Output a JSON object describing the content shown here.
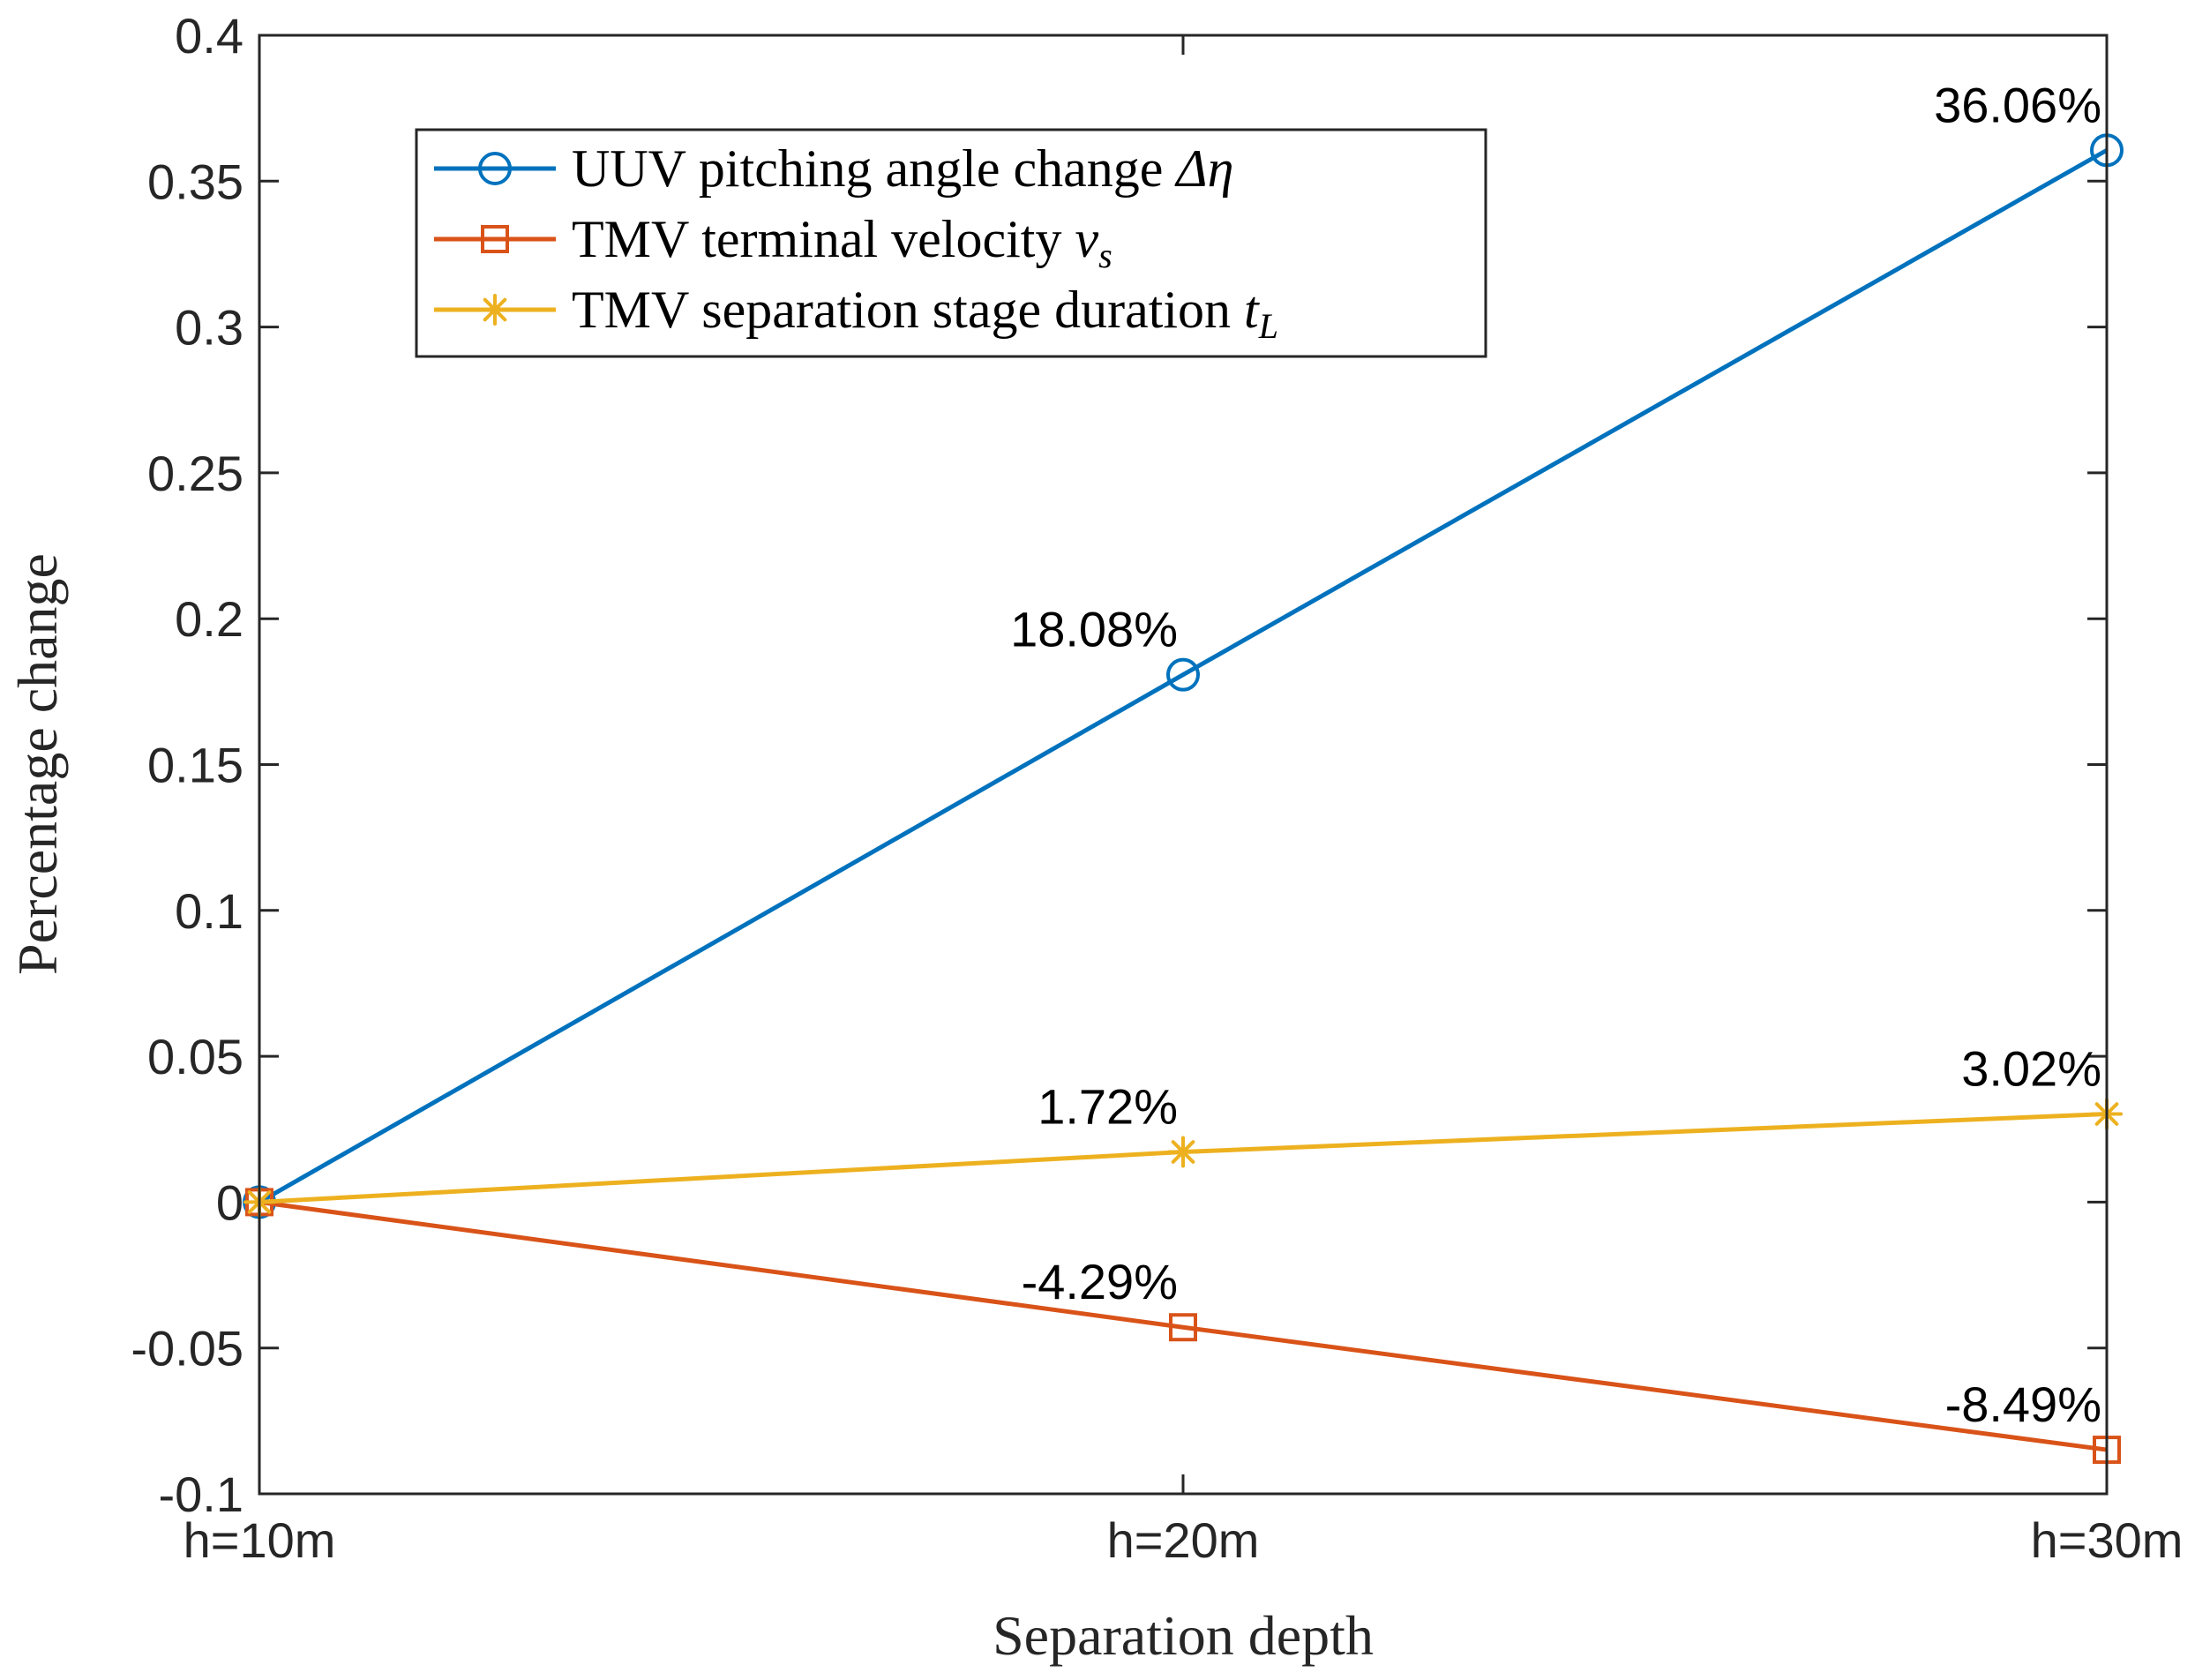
{
  "chart_data": {
    "type": "line",
    "title": "",
    "xlabel": "Separation depth",
    "ylabel": "Percentage change",
    "categories": [
      "h=10m",
      "h=20m",
      "h=30m"
    ],
    "ylim": [
      -0.1,
      0.4
    ],
    "yticks": [
      -0.1,
      -0.05,
      0,
      0.05,
      0.1,
      0.15,
      0.2,
      0.25,
      0.3,
      0.35,
      0.4
    ],
    "ytick_labels": [
      "-0.1",
      "-0.05",
      "0",
      "0.05",
      "0.1",
      "0.15",
      "0.2",
      "0.25",
      "0.3",
      "0.35",
      "0.4"
    ],
    "grid": false,
    "legend_position": "top-left",
    "series": [
      {
        "name": "UUV pitching angle change",
        "symbol": "Δη",
        "color": "#0072BD",
        "marker": "circle",
        "values": [
          0,
          0.1808,
          0.3606
        ],
        "labels": [
          "",
          "18.08%",
          "36.06%"
        ]
      },
      {
        "name": "TMV terminal velocity",
        "symbol": "v",
        "subscript": "s",
        "color": "#D95319",
        "marker": "square",
        "values": [
          0,
          -0.0429,
          -0.0849
        ],
        "labels": [
          "",
          "-4.29%",
          "-8.49%"
        ]
      },
      {
        "name": "TMV separation stage duration",
        "symbol": "t",
        "subscript": "L",
        "color": "#EDB120",
        "marker": "asterisk",
        "values": [
          0,
          0.0172,
          0.0302
        ],
        "labels": [
          "",
          "1.72%",
          "3.02%"
        ]
      }
    ]
  }
}
